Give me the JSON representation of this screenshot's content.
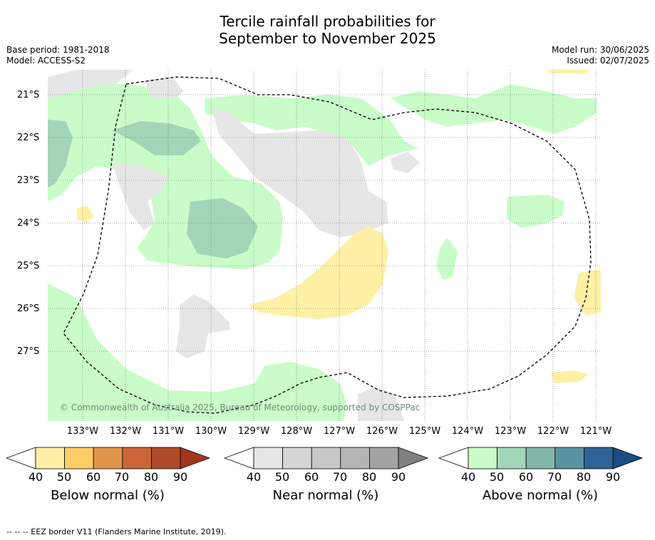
{
  "title_line1": "Tercile rainfall probabilities for",
  "title_line2": "September to November 2025",
  "meta_left": [
    "Base period: 1981-2018",
    "Model: ACCESS-S2"
  ],
  "meta_right": [
    "Model run: 30/06/2025",
    "Issued: 02/07/2025"
  ],
  "lat_labels": [
    "21°S",
    "22°S",
    "23°S",
    "24°S",
    "25°S",
    "26°S",
    "27°S"
  ],
  "lon_labels": [
    "133°W",
    "132°W",
    "131°W",
    "130°W",
    "129°W",
    "128°W",
    "127°W",
    "126°W",
    "125°W",
    "124°W",
    "123°W",
    "122°W",
    "121°W"
  ],
  "credit": "© Commonwealth of Australia 2025, Bureau of Meteorology, supported by COSPPac",
  "footer": "-- -- -- EEZ border V11 (Flanders Marine Institute, 2019).",
  "colorbars": [
    {
      "title": "Below normal (%)",
      "ticks": [
        "40",
        "50",
        "60",
        "70",
        "80",
        "90"
      ],
      "colors": [
        "#fff0a6",
        "#fdcd66",
        "#e0954a",
        "#cb6535",
        "#b04a28",
        "#a3351c"
      ]
    },
    {
      "title": "Near normal (%)",
      "ticks": [
        "40",
        "50",
        "60",
        "70",
        "80",
        "90"
      ],
      "colors": [
        "#e6e6e6",
        "#d6d6d6",
        "#c7c7c7",
        "#b5b5b5",
        "#a3a3a3",
        "#808080"
      ]
    },
    {
      "title": "Above normal (%)",
      "ticks": [
        "40",
        "50",
        "60",
        "70",
        "80",
        "90"
      ],
      "colors": [
        "#c9fcc8",
        "#a3d6b8",
        "#82b8ac",
        "#5a93a0",
        "#2e6495",
        "#1a4c83"
      ]
    }
  ]
}
